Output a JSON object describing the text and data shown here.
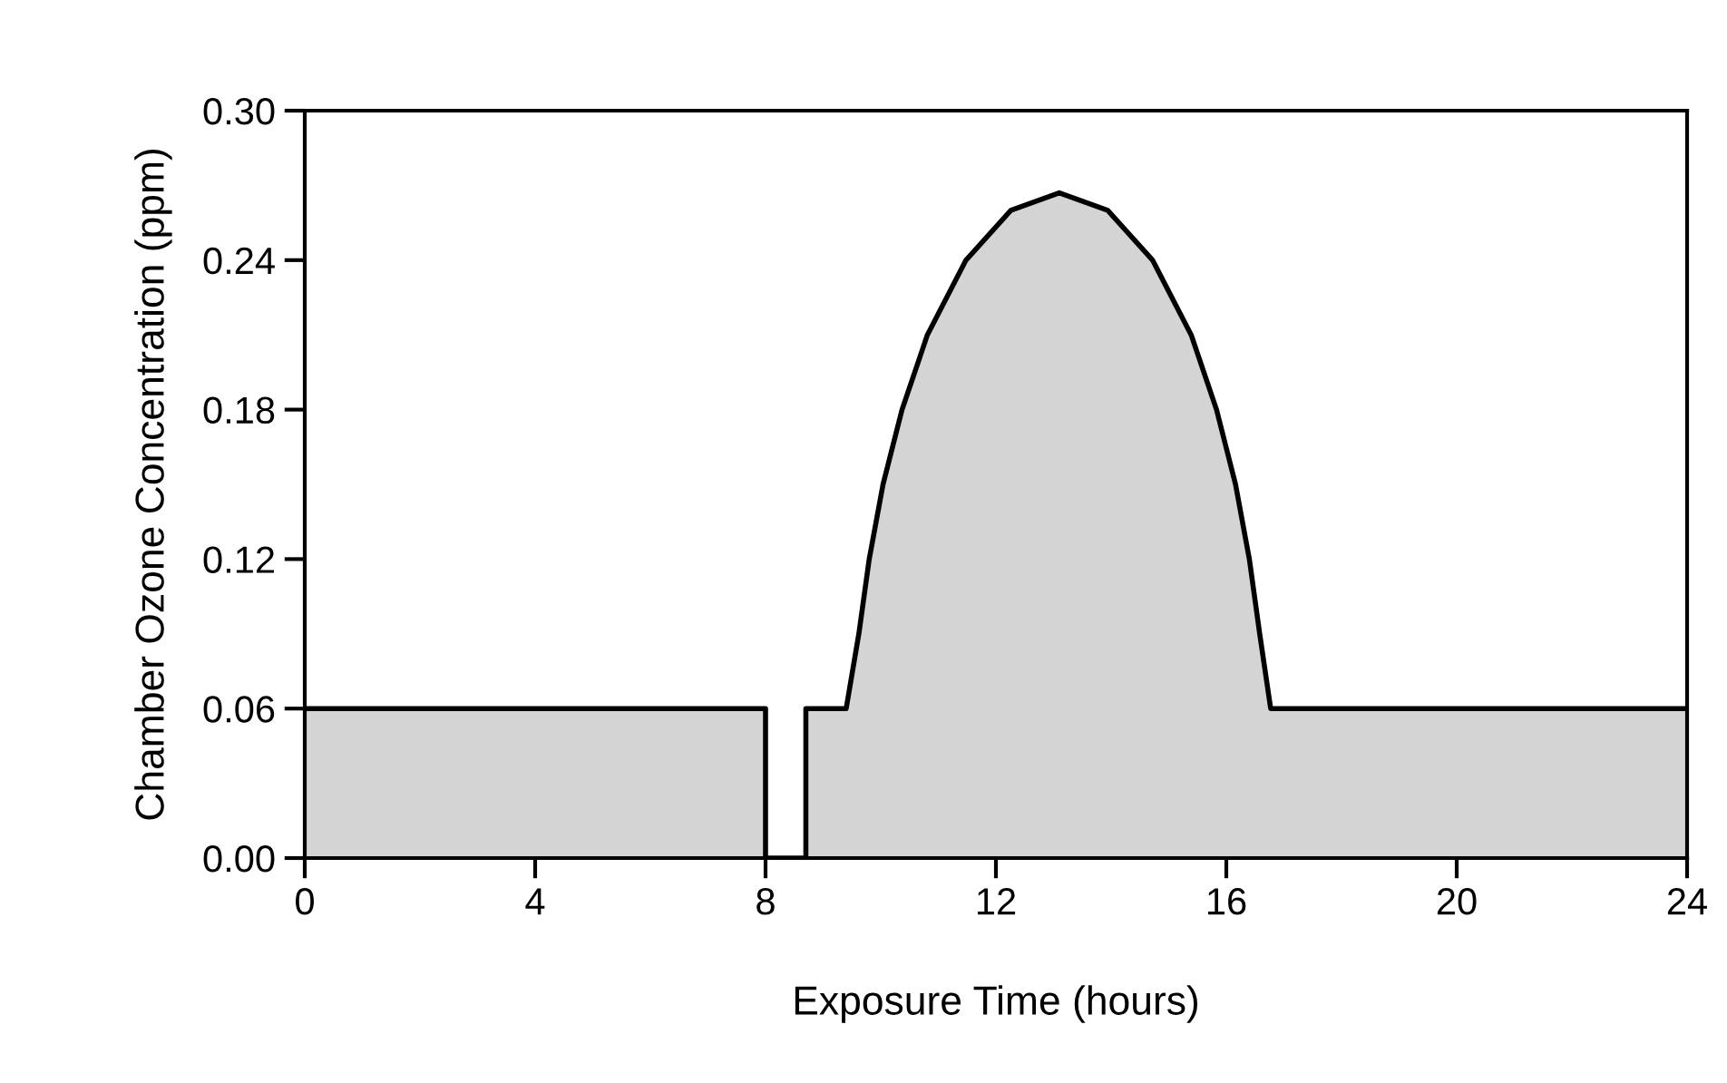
{
  "chart_data": {
    "type": "area",
    "xlabel": "Exposure Time (hours)",
    "ylabel": "Chamber Ozone Concentration (ppm)",
    "series": [
      {
        "color": "#d4d4d4",
        "x": [
          0,
          8,
          8,
          8.7,
          8.7,
          9.4,
          9.4,
          9.62,
          9.8,
          10.04,
          10.37,
          10.81,
          11.48,
          12.26,
          13.1,
          13.94,
          14.72,
          15.39,
          15.83,
          16.16,
          16.4,
          16.58,
          16.77,
          16.77,
          24
        ],
        "values": [
          0.06,
          0.06,
          0,
          0,
          0.06,
          0.06,
          0.06,
          0.09,
          0.12,
          0.15,
          0.18,
          0.21,
          0.24,
          0.26,
          0.267,
          0.26,
          0.24,
          0.21,
          0.18,
          0.15,
          0.12,
          0.09,
          0.06,
          0.06,
          0.06
        ]
      }
    ],
    "xlim": [
      0,
      24
    ],
    "xticks": [
      0,
      4,
      8,
      12,
      16,
      20,
      24
    ],
    "ylim": [
      0,
      0.3
    ],
    "yticks": [
      {
        "value": 0,
        "label": "0.00"
      },
      {
        "value": 0.06,
        "label": "0.06"
      },
      {
        "value": 0.12,
        "label": "0.12"
      },
      {
        "value": 0.18,
        "label": "0.18"
      },
      {
        "value": 0.24,
        "label": "0.24"
      },
      {
        "value": 0.3,
        "label": "0.30"
      }
    ],
    "grid": false,
    "legend": false
  }
}
